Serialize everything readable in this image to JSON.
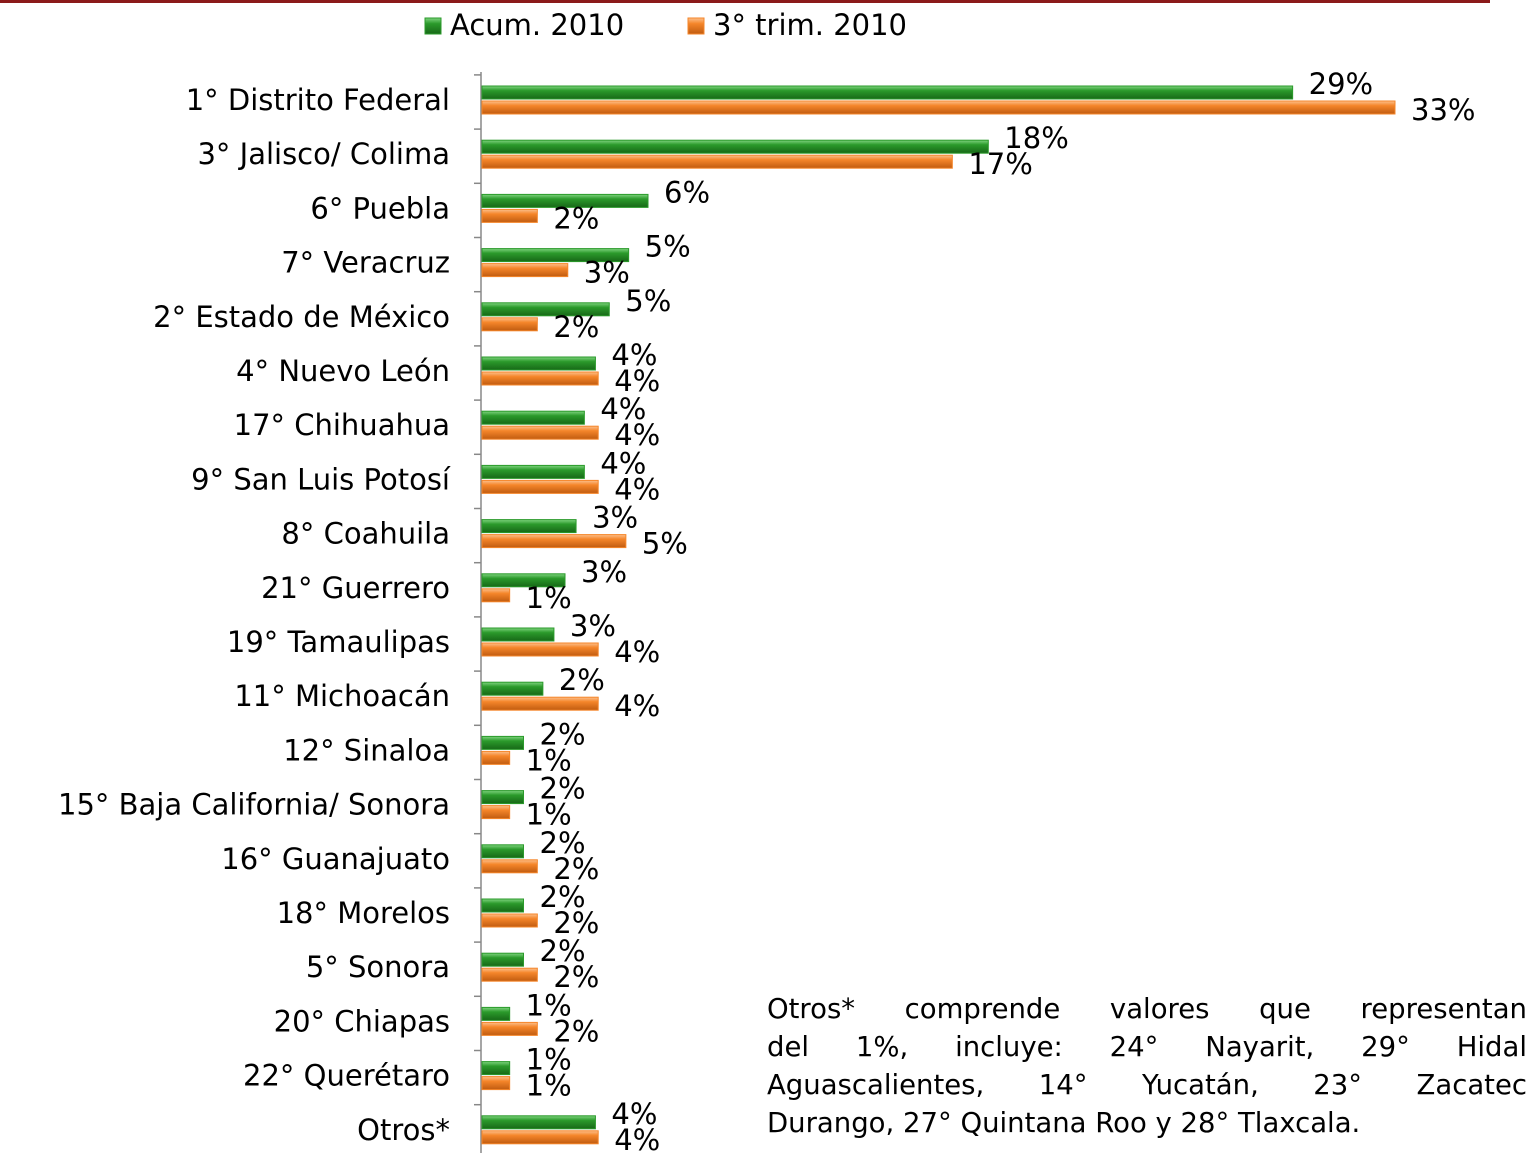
{
  "chart_data": {
    "type": "hbar",
    "categories": [
      "1° Distrito Federal",
      "3° Jalisco/ Colima",
      "6° Puebla",
      "7° Veracruz",
      "2° Estado de México",
      "4° Nuevo León",
      "17° Chihuahua",
      "9° San Luis Potosí",
      "8° Coahuila",
      "21° Guerrero",
      "19° Tamaulipas",
      "11° Michoacán",
      "12° Sinaloa",
      "15° Baja California/ Sonora",
      "16° Guanajuato",
      "18° Morelos",
      "5° Sonora",
      "20° Chiapas",
      "22° Querétaro",
      "Otros*"
    ],
    "series": [
      {
        "name": "Acum. 2010",
        "color": "#2b9a2b",
        "values": [
          29.3,
          18.3,
          6.0,
          5.3,
          4.6,
          4.1,
          3.7,
          3.7,
          3.4,
          3.0,
          2.6,
          2.2,
          1.5,
          1.5,
          1.5,
          1.5,
          1.5,
          1.0,
          1.0,
          4.1
        ],
        "value_labels": [
          "29%",
          "18%",
          "6%",
          "5%",
          "5%",
          "4%",
          "4%",
          "4%",
          "3%",
          "3%",
          "3%",
          "2%",
          "2%",
          "2%",
          "2%",
          "2%",
          "2%",
          "1%",
          "1%",
          "4%"
        ]
      },
      {
        "name": "3° trim. 2010",
        "color": "#f5862a",
        "values": [
          33.0,
          17.0,
          2.0,
          3.1,
          2.0,
          4.2,
          4.2,
          4.2,
          5.2,
          1.0,
          4.2,
          4.2,
          1.0,
          1.0,
          2.0,
          2.0,
          2.0,
          2.0,
          1.0,
          4.2
        ],
        "value_labels": [
          "33%",
          "17%",
          "2%",
          "3%",
          "2%",
          "4%",
          "4%",
          "4%",
          "5%",
          "1%",
          "4%",
          "4%",
          "1%",
          "1%",
          "2%",
          "2%",
          "2%",
          "2%",
          "1%",
          "4%"
        ]
      }
    ],
    "xlim": [
      0,
      33
    ],
    "legend": "top",
    "annotation_lines": [
      "Otros* comprende valores que representan",
      "del 1%, incluye: 24° Nayarit, 29° Hidal",
      "Aguascalientes, 14° Yucatán, 23° Zacatec",
      "Durango, 27° Quintana Roo y 28° Tlaxcala."
    ]
  }
}
